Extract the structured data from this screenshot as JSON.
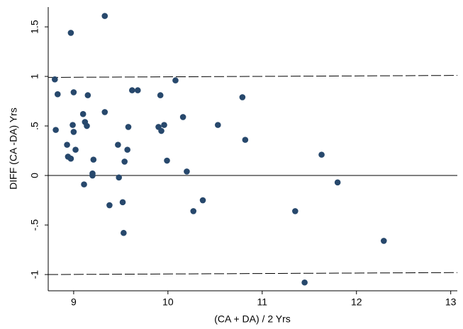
{
  "chart_data": {
    "type": "scatter",
    "x_label": "(CA + DA) / 2 Yrs",
    "y_label": "DIFF (CA -DA) Yrs",
    "color": "#27486c",
    "x": [
      9.33,
      8.97,
      8.8,
      8.83,
      9.0,
      9.15,
      8.81,
      8.99,
      9.0,
      9.1,
      9.12,
      9.14,
      9.33,
      8.93,
      9.02,
      8.94,
      8.97,
      9.2,
      9.2,
      9.21,
      9.11,
      9.38,
      9.48,
      9.47,
      9.54,
      9.57,
      9.58,
      9.52,
      9.53,
      9.62,
      9.68,
      9.92,
      10.08,
      9.9,
      9.93,
      9.96,
      9.99,
      10.16,
      10.2,
      10.27,
      10.37,
      10.53,
      10.79,
      10.82,
      11.35,
      11.45,
      11.63,
      11.8,
      12.29
    ],
    "values": [
      1.61,
      1.44,
      0.97,
      0.82,
      0.84,
      0.81,
      0.46,
      0.51,
      0.44,
      0.62,
      0.54,
      0.5,
      0.64,
      0.31,
      0.26,
      0.19,
      0.17,
      0.02,
      0.0,
      0.16,
      -0.09,
      -0.3,
      -0.02,
      0.31,
      0.14,
      0.26,
      0.49,
      -0.27,
      -0.58,
      0.86,
      0.86,
      0.81,
      0.96,
      0.49,
      0.45,
      0.51,
      0.15,
      0.59,
      0.04,
      -0.36,
      -0.25,
      0.51,
      0.79,
      0.36,
      -0.36,
      -1.08,
      0.21,
      -0.07,
      -0.66
    ],
    "xlim": [
      8.73,
      13.07
    ],
    "ylim": [
      -1.164,
      1.7
    ],
    "xticks": [
      9,
      10,
      11,
      12,
      13
    ],
    "yticks": [
      1.5,
      1,
      {
        "value": 0.5,
        "label": ".5"
      },
      0,
      {
        "value": -0.5,
        "label": "-.5"
      },
      -1
    ],
    "reference_lines": [
      {
        "y": [
          0.99,
          1.01
        ],
        "dashed": true
      },
      {
        "y": [
          0,
          0
        ],
        "dashed": false
      },
      {
        "y": [
          -1.0,
          -0.98
        ],
        "dashed": true
      }
    ]
  }
}
